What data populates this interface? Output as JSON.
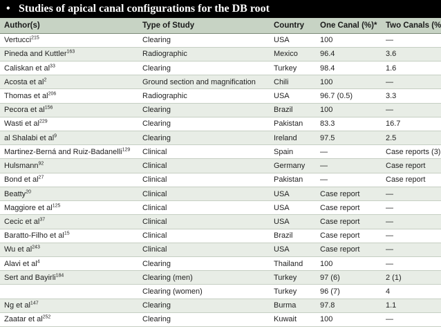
{
  "title": {
    "bullet": "•",
    "text": "Studies of apical canal configurations for the DB root"
  },
  "table": {
    "headers": [
      "Author(s)",
      "Type of Study",
      "Country",
      "One Canal (%)*",
      "Two Canals (%)†"
    ],
    "rows": [
      {
        "author": "Vertucci",
        "ref": "215",
        "type": "Clearing",
        "country": "USA",
        "one": "100",
        "two": "—"
      },
      {
        "author": "Pineda and Kuttler",
        "ref": "163",
        "type": "Radiographic",
        "country": "Mexico",
        "one": "96.4",
        "two": "3.6"
      },
      {
        "author": "Caliskan et al",
        "ref": "33",
        "type": "Clearing",
        "country": "Turkey",
        "one": "98.4",
        "two": "1.6"
      },
      {
        "author": "Acosta et al",
        "ref": "2",
        "type": "Ground section and magnification",
        "country": "Chili",
        "one": "100",
        "two": "—"
      },
      {
        "author": "Thomas et al",
        "ref": "206",
        "type": "Radiographic",
        "country": "USA",
        "one": "96.7 (0.5)",
        "two": "3.3"
      },
      {
        "author": "Pecora et al",
        "ref": "156",
        "type": "Clearing",
        "country": "Brazil",
        "one": "100",
        "two": "—"
      },
      {
        "author": "Wasti et al",
        "ref": "229",
        "type": "Clearing",
        "country": "Pakistan",
        "one": "83.3",
        "two": "16.7"
      },
      {
        "author": "al Shalabi et al",
        "ref": "9",
        "type": "Clearing",
        "country": "Ireland",
        "one": "97.5",
        "two": "2.5"
      },
      {
        "author": "Martinez-Berná and Ruiz-Badanelli",
        "ref": "129",
        "type": "Clinical",
        "country": "Spain",
        "one": "—",
        "two": "Case reports (3)"
      },
      {
        "author": "Hulsmann",
        "ref": "92",
        "type": "Clinical",
        "country": "Germany",
        "one": "—",
        "two": "Case report"
      },
      {
        "author": "Bond et al",
        "ref": "27",
        "type": "Clinical",
        "country": "Pakistan",
        "one": "—",
        "two": "Case report"
      },
      {
        "author": "Beatty",
        "ref": "20",
        "type": "Clinical",
        "country": "USA",
        "one": "Case report",
        "two": "—"
      },
      {
        "author": "Maggiore et al",
        "ref": "125",
        "type": "Clinical",
        "country": "USA",
        "one": "Case report",
        "two": "—"
      },
      {
        "author": "Cecic et al",
        "ref": "37",
        "type": "Clinical",
        "country": "USA",
        "one": "Case report",
        "two": "—"
      },
      {
        "author": "Baratto-Filho et al",
        "ref": "15",
        "type": "Clinical",
        "country": "Brazil",
        "one": "Case report",
        "two": "—"
      },
      {
        "author": "Wu et al",
        "ref": "243",
        "type": "Clinical",
        "country": "USA",
        "one": "Case report",
        "two": "—"
      },
      {
        "author": "Alavi et al",
        "ref": "4",
        "type": "Clearing",
        "country": "Thailand",
        "one": "100",
        "two": "—"
      },
      {
        "author": "Sert and Bayirli",
        "ref": "184",
        "type": "Clearing (men)",
        "country": "Turkey",
        "one": "97 (6)",
        "two": "2 (1)"
      },
      {
        "author": "",
        "ref": "",
        "type": "Clearing (women)",
        "country": "Turkey",
        "one": "96 (7)",
        "two": "4"
      },
      {
        "author": "Ng et al",
        "ref": "147",
        "type": "Clearing",
        "country": "Burma",
        "one": "97.8",
        "two": "1.1"
      },
      {
        "author": "Zaatar et al",
        "ref": "252",
        "type": "Clearing",
        "country": "Kuwait",
        "one": "100",
        "two": "—"
      }
    ]
  }
}
